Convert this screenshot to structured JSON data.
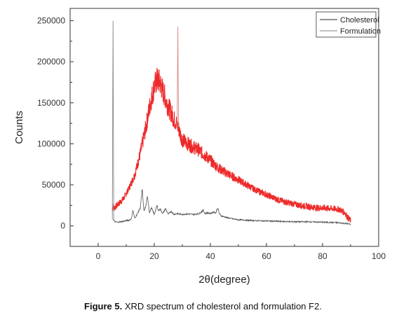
{
  "caption": {
    "label": "Figure 5.",
    "text": "XRD spectrum of cholesterol and formulation F2."
  },
  "chart_data": {
    "type": "line",
    "title": "",
    "xlabel": "2θ(degree)",
    "ylabel": "Counts",
    "xlim": [
      -10,
      100
    ],
    "ylim": [
      -25000,
      265000
    ],
    "x_ticks": [
      0,
      20,
      40,
      60,
      80,
      100
    ],
    "y_ticks": [
      0,
      50000,
      100000,
      150000,
      200000,
      250000
    ],
    "x_tick_labels": [
      "0",
      "20",
      "40",
      "60",
      "80",
      "100"
    ],
    "y_tick_labels": [
      "0",
      "50000",
      "100000",
      "150000",
      "200000",
      "250000"
    ],
    "grid": false,
    "legend": {
      "placement": "top-right"
    },
    "series": [
      {
        "name": "Cholesterol",
        "color": "#555555",
        "x": [
          5.2,
          5.5,
          6,
          7,
          8,
          9,
          10,
          11,
          11.8,
          12.4,
          13,
          14,
          15,
          15.7,
          16.3,
          17,
          17.6,
          18.3,
          19,
          20,
          21,
          21.5,
          22,
          23,
          24,
          25,
          26,
          27,
          28,
          30,
          32,
          34,
          36,
          37.5,
          38,
          39,
          40,
          41,
          42,
          42.6,
          43.2,
          44,
          46,
          48,
          50,
          55,
          60,
          65,
          70,
          75,
          80,
          85,
          88,
          90
        ],
        "y": [
          9000,
          7000,
          5000,
          4500,
          5000,
          5500,
          6500,
          7000,
          8500,
          19000,
          9000,
          15000,
          22000,
          44000,
          18000,
          24000,
          36000,
          16000,
          22000,
          14000,
          25000,
          18000,
          21000,
          15000,
          21000,
          14000,
          18000,
          14000,
          15000,
          14000,
          14500,
          14000,
          15000,
          19000,
          15000,
          16000,
          15000,
          17000,
          16000,
          22000,
          15000,
          12000,
          10000,
          8500,
          7500,
          6500,
          6000,
          5500,
          5000,
          5000,
          4500,
          4000,
          3000,
          2000
        ]
      },
      {
        "name": "Formulation",
        "color": "#ee2a2a",
        "x": [
          5,
          5.4,
          5.8,
          7,
          9,
          11,
          13,
          15,
          17,
          18.5,
          20,
          21,
          22,
          23,
          24,
          25,
          26,
          27,
          28,
          29,
          30,
          32,
          34,
          36,
          38,
          40,
          42,
          44,
          46,
          48,
          50,
          52,
          54,
          56,
          58,
          60,
          62,
          64,
          66,
          68,
          70,
          72,
          74,
          76,
          78,
          80,
          82,
          84,
          86,
          88,
          89,
          90
        ],
        "y": [
          20000,
          24000,
          22000,
          26000,
          33000,
          46000,
          62000,
          88000,
          120000,
          148000,
          170000,
          178000,
          175000,
          165000,
          155000,
          145000,
          138000,
          130000,
          125000,
          115000,
          105000,
          100000,
          96000,
          92000,
          86000,
          80000,
          73000,
          68000,
          64000,
          60000,
          56000,
          52000,
          48000,
          44000,
          41000,
          38000,
          35000,
          32000,
          30000,
          28000,
          26500,
          25000,
          24000,
          23000,
          22000,
          22000,
          21500,
          21000,
          20000,
          16000,
          10000,
          6000
        ]
      }
    ],
    "spikes": [
      {
        "series": "Cholesterol",
        "x": 5.3,
        "y": 250000
      },
      {
        "series": "Formulation",
        "x": 28.4,
        "y": 243000
      }
    ]
  }
}
